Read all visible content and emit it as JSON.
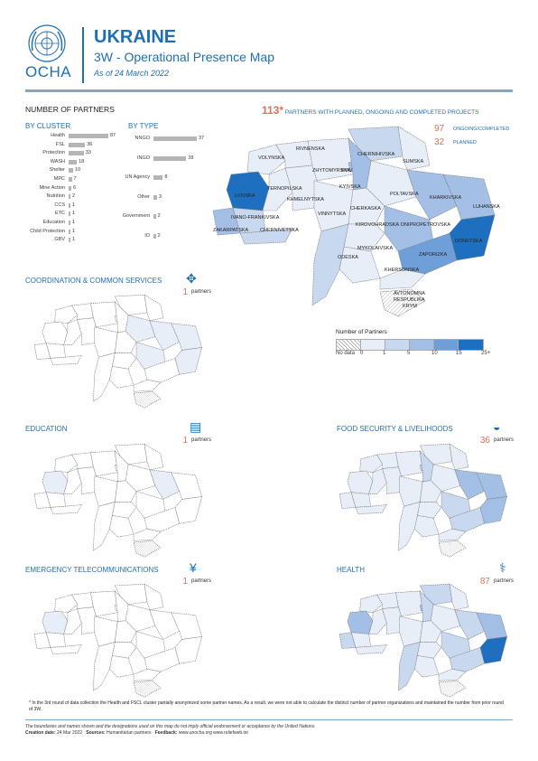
{
  "header": {
    "org": "OCHA",
    "title": "UKRAINE",
    "subtitle": "3W - Operational Presence Map",
    "as_of": "As of 24 March 2022"
  },
  "partners_summary": {
    "heading": "NUMBER OF PARTNERS",
    "total": "113*",
    "total_text": "PARTNERS WITH PLANNED, ONGOING AND COMPLETED PROJECTS",
    "ongoing_value": "97",
    "ongoing_label": "ONGOING/COMPLETED",
    "planned_value": "32",
    "planned_label": "PLANNED"
  },
  "by_cluster": {
    "heading": "BY CLUSTER",
    "items": [
      {
        "label": "Health",
        "value": 87
      },
      {
        "label": "FSL",
        "value": 36
      },
      {
        "label": "Protection",
        "value": 33
      },
      {
        "label": "WASH",
        "value": 18
      },
      {
        "label": "Shelter",
        "value": 10
      },
      {
        "label": "MPC",
        "value": 7
      },
      {
        "label": "Mine Action",
        "value": 6
      },
      {
        "label": "Nutrition",
        "value": 2
      },
      {
        "label": "CCS",
        "value": 1
      },
      {
        "label": "ETC",
        "value": 1
      },
      {
        "label": "Education",
        "value": 1
      },
      {
        "label": "Child Protection",
        "value": 1
      },
      {
        "label": "GBV",
        "value": 1
      }
    ]
  },
  "by_type": {
    "heading": "BY TYPE",
    "items": [
      {
        "label": "NNGO",
        "value": 37
      },
      {
        "label": "INGO",
        "value": 28
      },
      {
        "label": "UN Agency",
        "value": 8
      },
      {
        "label": "Other",
        "value": 3
      },
      {
        "label": "Government",
        "value": 2
      },
      {
        "label": "IO",
        "value": 2
      }
    ]
  },
  "main_map": {
    "regions": [
      {
        "name": "VOLYNSKA",
        "level": 1
      },
      {
        "name": "RIVNENSKA",
        "level": 1
      },
      {
        "name": "CHERNIHIVSKA",
        "level": 2
      },
      {
        "name": "SUMSKA",
        "level": 1
      },
      {
        "name": "ZHYTOMYRSKA",
        "level": 1
      },
      {
        "name": "KYIV",
        "level": 3
      },
      {
        "name": "KYIVSKA",
        "level": 3
      },
      {
        "name": "LVIVSKA",
        "level": 5
      },
      {
        "name": "TERNOPILSKA",
        "level": 1
      },
      {
        "name": "KHMELNYTSKA",
        "level": 1
      },
      {
        "name": "POLTAVSKA",
        "level": 1
      },
      {
        "name": "KHARKIVSKA",
        "level": 3
      },
      {
        "name": "LUHANSKA",
        "level": 3
      },
      {
        "name": "IVANO-FRANKIVSKA",
        "level": 2
      },
      {
        "name": "VINNYTSKA",
        "level": 1
      },
      {
        "name": "CHERKASKA",
        "level": 1
      },
      {
        "name": "ZAKARPATSKA",
        "level": 3
      },
      {
        "name": "CHERNIVETSKA",
        "level": 2
      },
      {
        "name": "KIROVOHRADSKA",
        "level": 1
      },
      {
        "name": "DNIPROPETROVSKA",
        "level": 3
      },
      {
        "name": "DONETSKA",
        "level": 5
      },
      {
        "name": "MYKOLAIVSKA",
        "level": 1
      },
      {
        "name": "ZAPORIZKA",
        "level": 4
      },
      {
        "name": "ODESKA",
        "level": 2
      },
      {
        "name": "KHERSONSKA",
        "level": 1
      },
      {
        "name": "AVTONOMNA RESPUBLIKA KRYM",
        "level": 0
      }
    ]
  },
  "legend": {
    "title": "Number of Partners",
    "labels": [
      "No data",
      "0",
      "1",
      "5",
      "10",
      "15",
      "25+"
    ],
    "colors": [
      "#ffffff",
      "#ffffff",
      "#e8eef8",
      "#c8d8ef",
      "#a3bfe6",
      "#6f9fd8",
      "#1f6fc0"
    ]
  },
  "clusters": [
    {
      "name": "COORDINATION & COMMON SERVICES",
      "count": "1",
      "unit": "partners",
      "icon": "coordination-icon"
    },
    {
      "name": "EDUCATION",
      "count": "1",
      "unit": "partners",
      "icon": "education-icon"
    },
    {
      "name": "FOOD SECURITY & LIVELIHOODS",
      "count": "36",
      "unit": "partners",
      "icon": "food-icon"
    },
    {
      "name": "EMERGENCY TELECOMMUNICATIONS",
      "count": "1",
      "unit": "partners",
      "icon": "telecom-icon"
    },
    {
      "name": "HEALTH",
      "count": "87",
      "unit": "partners",
      "icon": "health-icon"
    }
  ],
  "footnote": "* In the 3rd round of data collection the Health and FSCL cluster partially anonymized some partner names. As a result, we were not able to calculate the distinct number of partner organizations and maintained the number from prior round of 3W.",
  "disclaimer": "The boundaries and names shown and the designations used on this map do not imply official endorsement or acceptance by the United Nations.",
  "footer": {
    "creation_label": "Creation date:",
    "creation_date": "24 Mar 2022",
    "sources_label": "Sources:",
    "sources": "Humanitarian partners",
    "feedback_label": "Feedback:",
    "feedback": "www.unocha.org   www.reliefweb.int"
  },
  "colors": {
    "accent": "#1f6fb5",
    "highlight": "#e0705a",
    "bar": "#b5b5b5"
  }
}
